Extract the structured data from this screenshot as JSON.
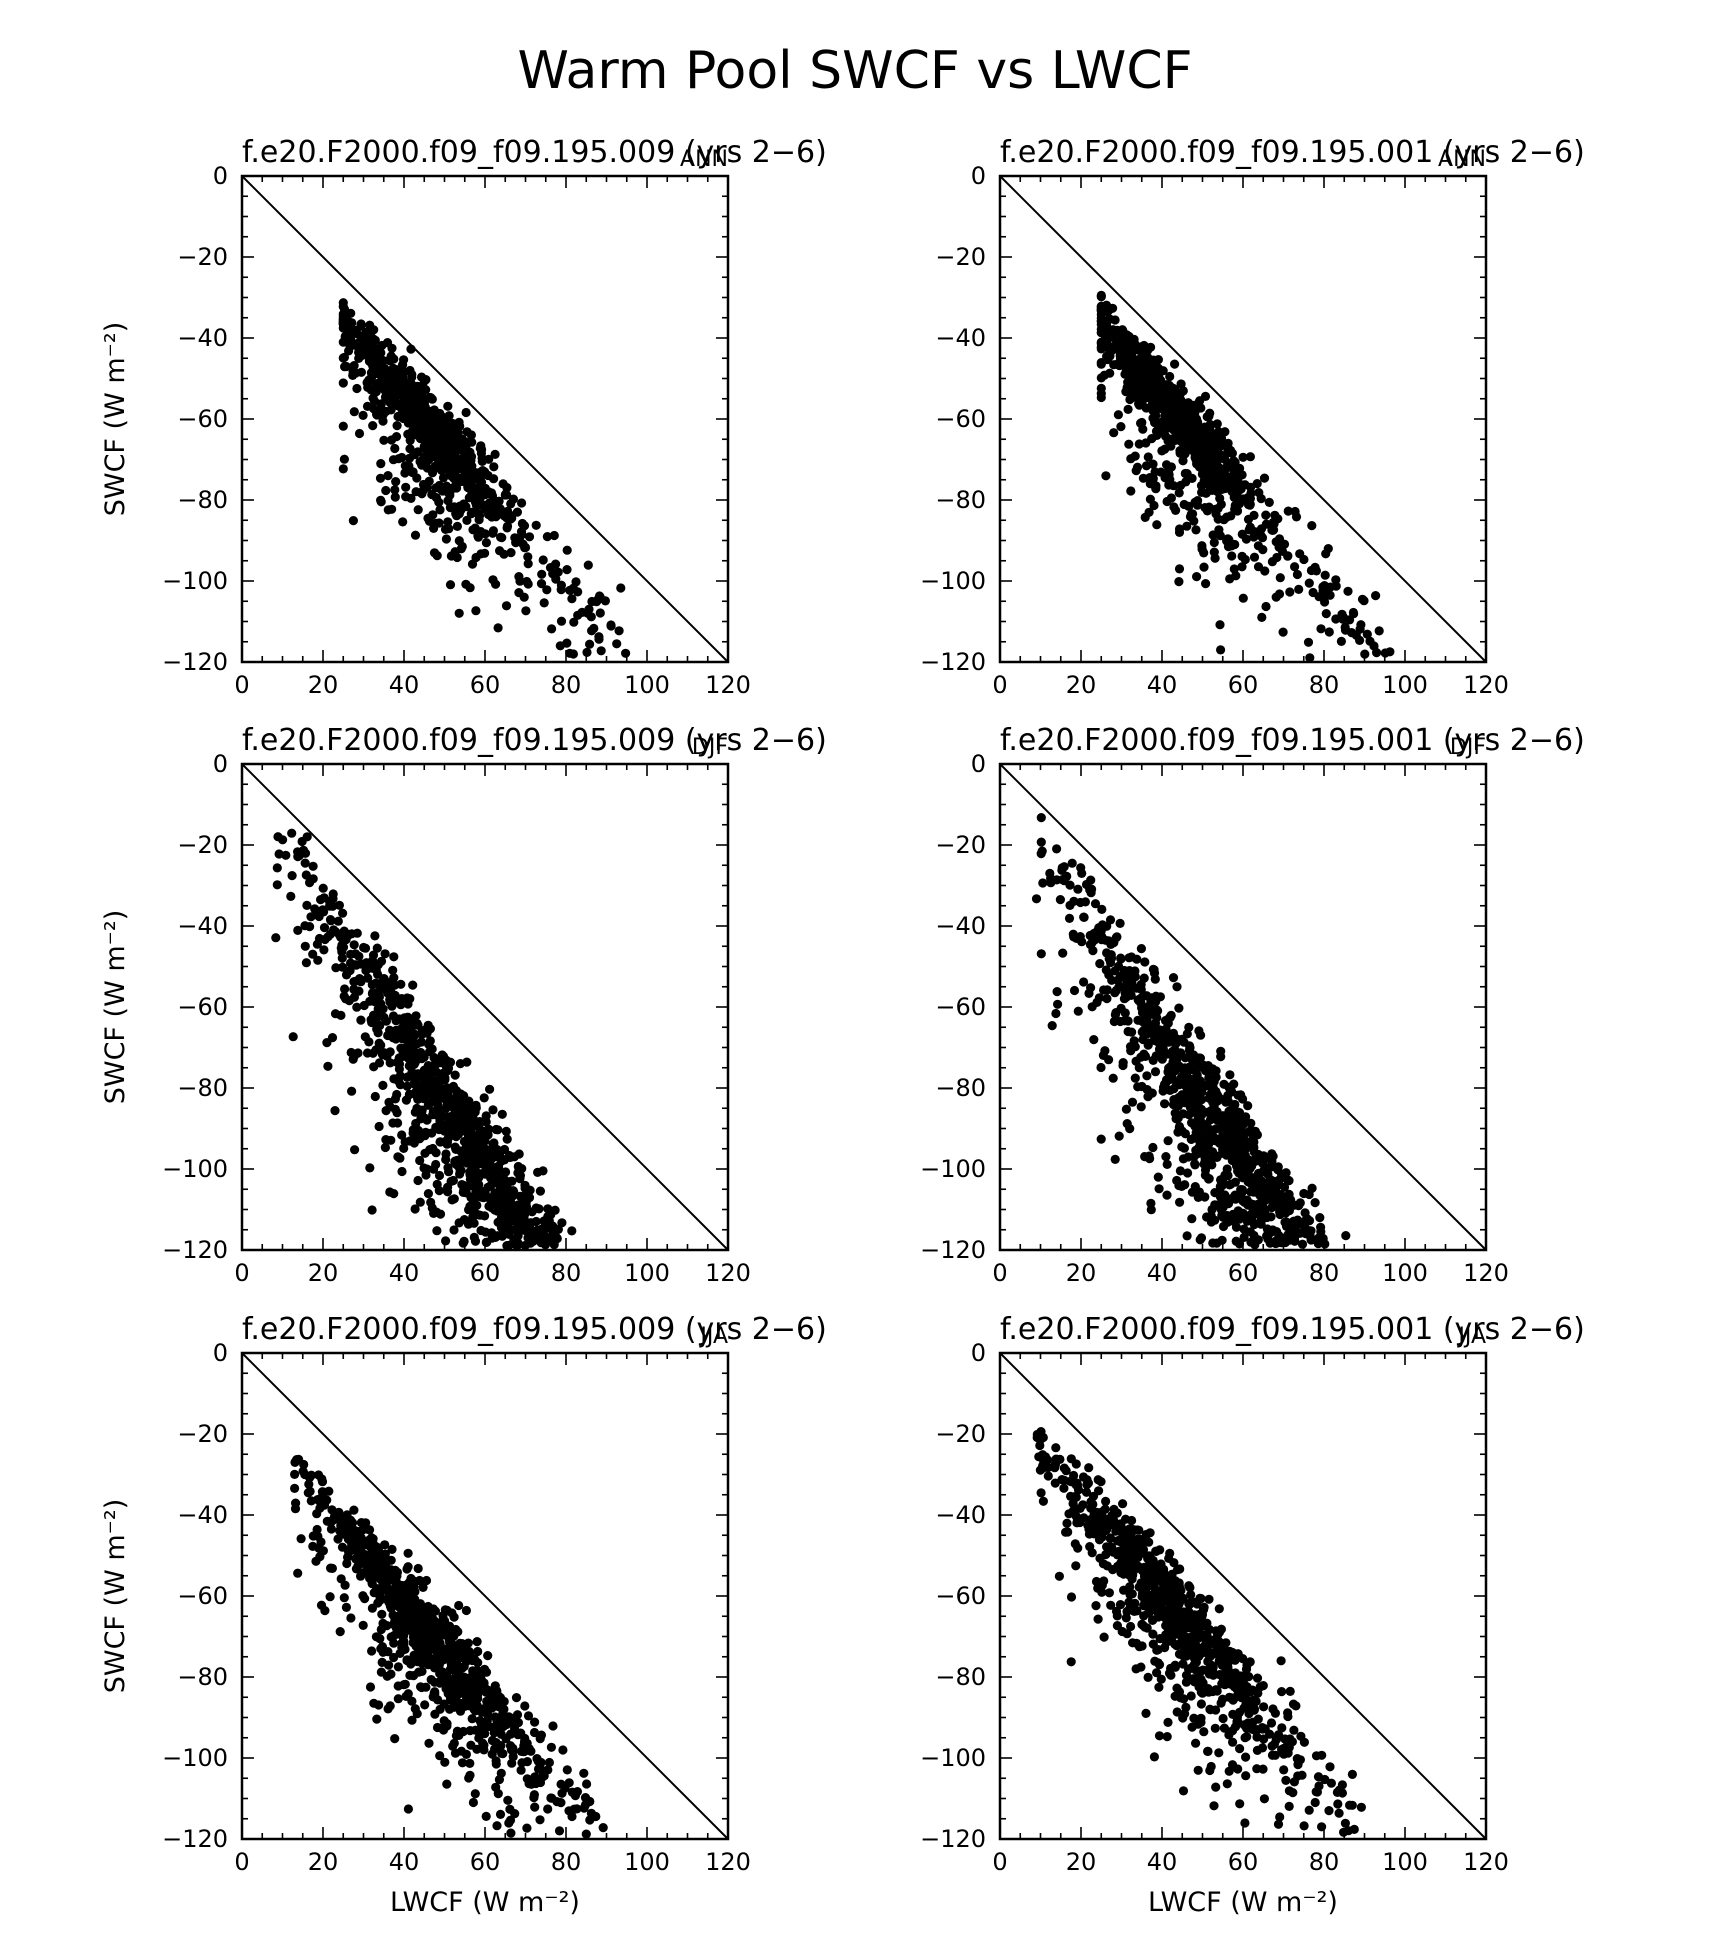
{
  "figure": {
    "title": "Warm Pool SWCF vs LWCF"
  },
  "chart_data": [
    {
      "type": "scatter",
      "row": 0,
      "col": 0,
      "title": "f.e20.F2000.f09_f09.195.009 (yrs 2−6)",
      "season": "ANN",
      "xlabel": "",
      "ylabel": "SWCF (W m⁻²)",
      "xlim": [
        0,
        120
      ],
      "ylim": [
        -120,
        0
      ],
      "xticks": [
        "0",
        "20",
        "40",
        "60",
        "80",
        "100",
        "120"
      ],
      "yticks": [
        "0",
        "−20",
        "−40",
        "−60",
        "−80",
        "−100",
        "−120"
      ],
      "reference_line": [
        [
          0,
          0
        ],
        [
          120,
          -120
        ]
      ],
      "cloud": {
        "seed": 11,
        "n": 900,
        "xmin": 25,
        "xmax": 95,
        "xmid": 45,
        "xsd": 10,
        "cnear": 11,
        "cfar": 24,
        "spread": 5,
        "scat": 0.35
      }
    },
    {
      "type": "scatter",
      "row": 0,
      "col": 1,
      "title": "f.e20.F2000.f09_f09.195.001 (yrs 2−6)",
      "season": "ANN",
      "xlabel": "",
      "ylabel": "",
      "xlim": [
        0,
        120
      ],
      "ylim": [
        -120,
        0
      ],
      "xticks": [
        "0",
        "20",
        "40",
        "60",
        "80",
        "100",
        "120"
      ],
      "yticks": [
        "0",
        "−20",
        "−40",
        "−60",
        "−80",
        "−100",
        "−120"
      ],
      "reference_line": [
        [
          0,
          0
        ],
        [
          120,
          -120
        ]
      ],
      "cloud": {
        "seed": 23,
        "n": 900,
        "xmin": 25,
        "xmax": 97,
        "xmid": 43,
        "xsd": 10,
        "cnear": 11,
        "cfar": 24,
        "spread": 5,
        "scat": 0.35
      }
    },
    {
      "type": "scatter",
      "row": 1,
      "col": 0,
      "title": "f.e20.F2000.f09_f09.195.009 (yrs 2−6)",
      "season": "DJF",
      "xlabel": "",
      "ylabel": "SWCF (W m⁻²)",
      "xlim": [
        0,
        120
      ],
      "ylim": [
        -120,
        0
      ],
      "xticks": [
        "0",
        "20",
        "40",
        "60",
        "80",
        "100",
        "120"
      ],
      "yticks": [
        "0",
        "−20",
        "−40",
        "−60",
        "−80",
        "−100",
        "−120"
      ],
      "reference_line": [
        [
          0,
          0
        ],
        [
          120,
          -120
        ]
      ],
      "cloud": {
        "seed": 37,
        "n": 1300,
        "xmin": 8,
        "xmax": 102,
        "xmid": 58,
        "xsd": 17,
        "cnear": 8,
        "cfar": 60,
        "spread": 7,
        "scat": 0.5
      }
    },
    {
      "type": "scatter",
      "row": 1,
      "col": 1,
      "title": "f.e20.F2000.f09_f09.195.001 (yrs 2−6)",
      "season": "DJF",
      "xlabel": "",
      "ylabel": "",
      "xlim": [
        0,
        120
      ],
      "ylim": [
        -120,
        0
      ],
      "xticks": [
        "0",
        "20",
        "40",
        "60",
        "80",
        "100",
        "120"
      ],
      "yticks": [
        "0",
        "−20",
        "−40",
        "−60",
        "−80",
        "−100",
        "−120"
      ],
      "reference_line": [
        [
          0,
          0
        ],
        [
          120,
          -120
        ]
      ],
      "cloud": {
        "seed": 41,
        "n": 1300,
        "xmin": 9,
        "xmax": 98,
        "xmid": 60,
        "xsd": 17,
        "cnear": 9,
        "cfar": 55,
        "spread": 7,
        "scat": 0.5
      }
    },
    {
      "type": "scatter",
      "row": 2,
      "col": 0,
      "title": "f.e20.F2000.f09_f09.195.009 (yrs 2−6)",
      "season": "JJA",
      "xlabel": "LWCF (W m⁻²)",
      "ylabel": "SWCF (W m⁻²)",
      "xlim": [
        0,
        120
      ],
      "ylim": [
        -120,
        0
      ],
      "xticks": [
        "0",
        "20",
        "40",
        "60",
        "80",
        "100",
        "120"
      ],
      "yticks": [
        "0",
        "−20",
        "−40",
        "−60",
        "−80",
        "−100",
        "−120"
      ],
      "reference_line": [
        [
          0,
          0
        ],
        [
          120,
          -120
        ]
      ],
      "cloud": {
        "seed": 53,
        "n": 900,
        "xmin": 13,
        "xmax": 90,
        "xmid": 45,
        "xsd": 12,
        "cnear": 15,
        "cfar": 30,
        "spread": 5,
        "scat": 0.4
      }
    },
    {
      "type": "scatter",
      "row": 2,
      "col": 1,
      "title": "f.e20.F2000.f09_f09.195.001 (yrs 2−6)",
      "season": "JJA",
      "xlabel": "LWCF (W m⁻²)",
      "ylabel": "",
      "xlim": [
        0,
        120
      ],
      "ylim": [
        -120,
        0
      ],
      "xticks": [
        "0",
        "20",
        "40",
        "60",
        "80",
        "100",
        "120"
      ],
      "yticks": [
        "0",
        "−20",
        "−40",
        "−60",
        "−80",
        "−100",
        "−120"
      ],
      "reference_line": [
        [
          0,
          0
        ],
        [
          120,
          -120
        ]
      ],
      "cloud": {
        "seed": 67,
        "n": 900,
        "xmin": 8,
        "xmax": 90,
        "xmid": 42,
        "xsd": 13,
        "cnear": 12,
        "cfar": 28,
        "spread": 5,
        "scat": 0.4
      }
    }
  ]
}
